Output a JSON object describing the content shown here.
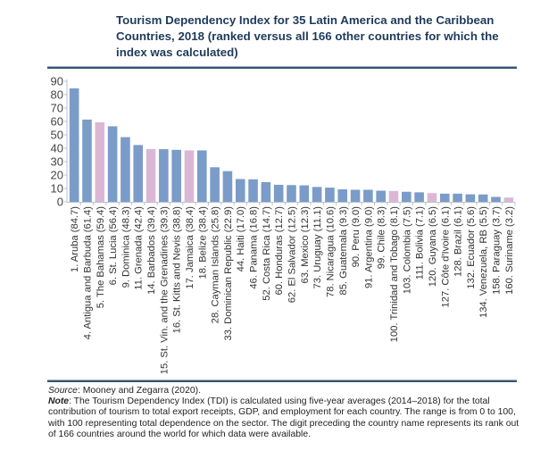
{
  "chart_data": {
    "type": "bar",
    "title": "Tourism Dependency Index for 35 Latin America and the Caribbean Countries, 2018 (ranked versus all 166 other countries for which the index was calculated)",
    "xlabel": "",
    "ylabel": "",
    "ylim": [
      0,
      90
    ],
    "yticks": [
      0,
      10,
      20,
      30,
      40,
      50,
      60,
      70,
      80,
      90
    ],
    "grid": false,
    "legend": "none",
    "colors": {
      "default": "#7b9cc9",
      "highlight": "#dbb7d6"
    },
    "categories": [
      "1. Aruba (84.7)",
      "4. Antigua and Barbuda (61.4)",
      "5. The Bahamas (59.4)",
      "6. St. Lucia (56.4)",
      "9. Dominica (48.3)",
      "11. Grenada (42.4)",
      "14. Barbados (39.4)",
      "15. St. Vin. and the Grenadines (39.3)",
      "16. St. Kitts and Nevis (38.8)",
      "17. Jamaica (38.4)",
      "18. Belize (38.4)",
      "28. Cayman Islands (25.8)",
      "33. Dominican Republic (22.9)",
      "44. Haiti (17.0)",
      "46. Panama (16.8)",
      "52. Costa Rica (14.7)",
      "60. Honduras (12.7)",
      "62. El Salvador (12.5)",
      "63. Mexico (12.3)",
      "73. Uruguay (11.1)",
      "78. Nicaragua (10.6)",
      "85. Guatemala (9.3)",
      "90. Peru (9.0)",
      "91. Argentina (9.0)",
      "99. Chile (8.3)",
      "100. Trinidad and Tobago (8.1)",
      "103. Colombia (7.5)",
      "111. Bolivia (7.1)",
      "120. Guyana (6.5)",
      "127. Côte d'Ivoire (6.1)",
      "128. Brazil (6.1)",
      "132. Ecuador (5.6)",
      "134. Venezuela, RB (5.5)",
      "158. Paraguay (3.7)",
      "160. Suriname (3.2)"
    ],
    "values": [
      84.7,
      61.4,
      59.4,
      56.4,
      48.3,
      42.4,
      39.4,
      39.3,
      38.8,
      38.4,
      38.4,
      25.8,
      22.9,
      17.0,
      16.8,
      14.7,
      12.7,
      12.5,
      12.3,
      11.1,
      10.6,
      9.3,
      9.0,
      9.0,
      8.3,
      8.1,
      7.5,
      7.1,
      6.5,
      6.1,
      6.1,
      5.6,
      5.5,
      3.7,
      3.2
    ],
    "highlighted": [
      false,
      false,
      true,
      false,
      false,
      false,
      true,
      false,
      false,
      true,
      false,
      false,
      false,
      false,
      false,
      false,
      false,
      false,
      false,
      false,
      false,
      false,
      false,
      false,
      false,
      true,
      false,
      false,
      true,
      false,
      false,
      false,
      false,
      false,
      true
    ]
  },
  "footer": {
    "source_label": "Source",
    "source_text": ": Mooney and Zegarra (2020).",
    "note_label": "Note",
    "note_text": ": The Tourism Dependency Index (TDI) is calculated using five-year averages (2014–2018) for the total contribution of tourism to total export receipts, GDP, and employment for each country. The range is from 0 to 100, with 100 representing total dependence on the sector. The digit preceding the country name represents its rank out of 166 countries around the world for which data were available."
  }
}
